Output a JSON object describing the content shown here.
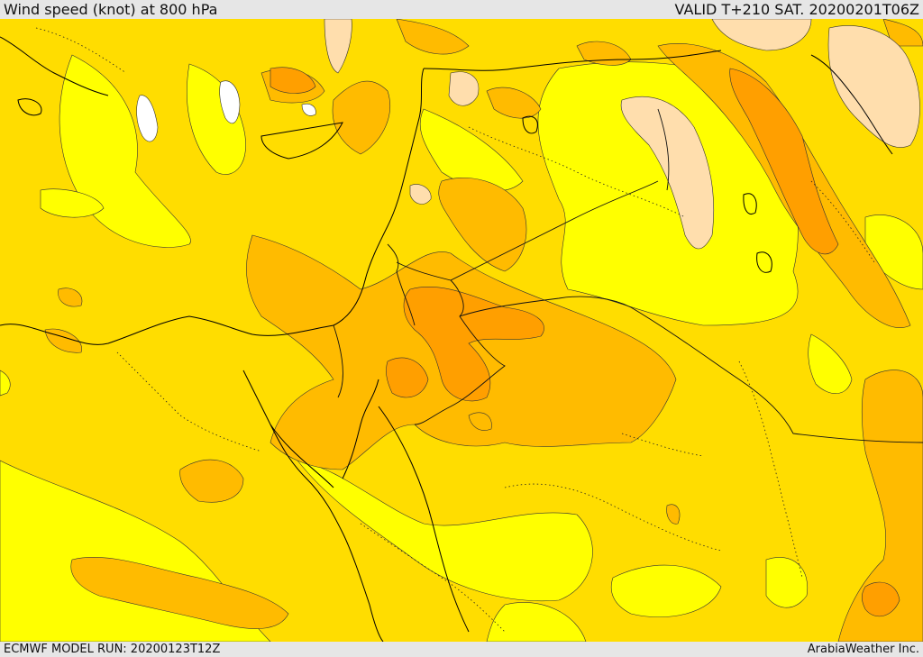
{
  "header": {
    "title": "Wind speed (knot) at 800 hPa",
    "valid": "VALID T+210 SAT. 20200201T06Z"
  },
  "footer": {
    "model_run": "ECMWF MODEL RUN: 20200123T12Z",
    "credit": "ArabiaWeather Inc."
  },
  "map": {
    "region": "Eastern Mediterranean / Middle East",
    "colors": {
      "calm": "#ffffff",
      "light_peach": "#ffdead",
      "yellow_pale": "#ffff00",
      "yellow": "#ffdd00",
      "amber": "#ffbb00",
      "orange": "#ff9f00",
      "dark_orange": "#ff8200",
      "coastline": "#000000"
    }
  }
}
